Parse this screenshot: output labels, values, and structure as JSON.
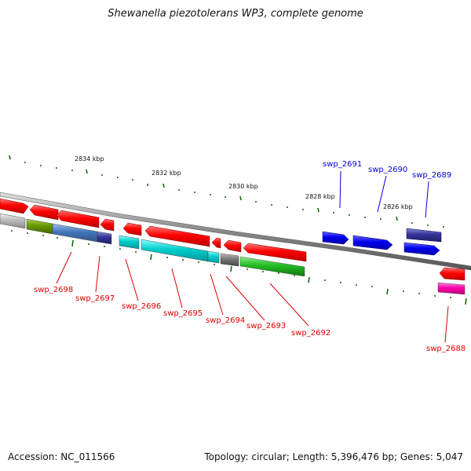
{
  "title": "Shewanella piezotolerans WP3, complete genome",
  "accession_text": "Accession: NC_011566",
  "stats_text": "Topology: circular; Length: 5,396,476 bp; Genes: 5,047",
  "scale_labels": [
    "2834 kbp",
    "2832 kbp",
    "2830 kbp",
    "2828 kbp",
    "2826 kbp"
  ],
  "gene_labels_reverse": [
    "swp_2698",
    "swp_2697",
    "swp_2696",
    "swp_2695",
    "swp_2694",
    "swp_2693",
    "swp_2692",
    "swp_2688"
  ],
  "gene_labels_forward": [
    "swp_2691",
    "swp_2690",
    "swp_2689"
  ],
  "colors": {
    "red": "#ff0000",
    "blue": "#0000ee",
    "navy": "#333399",
    "cyan": "#00cccc",
    "gray": "#777777",
    "green": "#22bb22",
    "olive": "#669900",
    "steel": "#4477bb",
    "magenta": "#ff00aa",
    "light_gray": "#bbbbbb",
    "tick": "#006600",
    "label_red": "#e00000",
    "label_blue": "#0000dd"
  }
}
